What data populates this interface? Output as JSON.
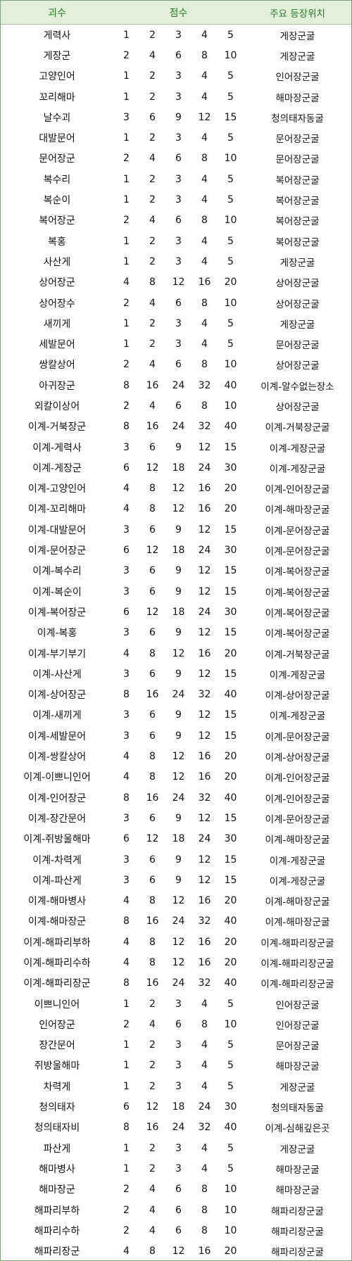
{
  "header": {
    "name": "괴수",
    "score": "점수",
    "location": "주요 등장위치"
  },
  "rows": [
    {
      "name": "게력사",
      "scores": [
        "1",
        "2",
        "3",
        "4",
        "5"
      ],
      "location": "게장군굴"
    },
    {
      "name": "게장군",
      "scores": [
        "2",
        "4",
        "6",
        "8",
        "10"
      ],
      "location": "게장군굴"
    },
    {
      "name": "고양인어",
      "scores": [
        "1",
        "2",
        "3",
        "4",
        "5"
      ],
      "location": "인어장군굴"
    },
    {
      "name": "꼬리해마",
      "scores": [
        "1",
        "2",
        "3",
        "4",
        "5"
      ],
      "location": "해마장군굴"
    },
    {
      "name": "날수괴",
      "scores": [
        "3",
        "6",
        "9",
        "12",
        "15"
      ],
      "location": "청의태자동굴"
    },
    {
      "name": "대발문어",
      "scores": [
        "1",
        "2",
        "3",
        "4",
        "5"
      ],
      "location": "문어장군굴"
    },
    {
      "name": "문어장군",
      "scores": [
        "2",
        "4",
        "6",
        "8",
        "10"
      ],
      "location": "문어장군굴"
    },
    {
      "name": "복수리",
      "scores": [
        "1",
        "2",
        "3",
        "4",
        "5"
      ],
      "location": "복어장군굴"
    },
    {
      "name": "복순이",
      "scores": [
        "1",
        "2",
        "3",
        "4",
        "5"
      ],
      "location": "복어장군굴"
    },
    {
      "name": "복어장군",
      "scores": [
        "2",
        "4",
        "6",
        "8",
        "10"
      ],
      "location": "복어장군굴"
    },
    {
      "name": "복홍",
      "scores": [
        "1",
        "2",
        "3",
        "4",
        "5"
      ],
      "location": "복어장군굴"
    },
    {
      "name": "사산게",
      "scores": [
        "1",
        "2",
        "3",
        "4",
        "5"
      ],
      "location": "게장군굴"
    },
    {
      "name": "상어장군",
      "scores": [
        "4",
        "8",
        "12",
        "16",
        "20"
      ],
      "location": "상어장군굴"
    },
    {
      "name": "상어장수",
      "scores": [
        "2",
        "4",
        "6",
        "8",
        "10"
      ],
      "location": "상어장군굴"
    },
    {
      "name": "새끼게",
      "scores": [
        "1",
        "2",
        "3",
        "4",
        "5"
      ],
      "location": "게장군굴"
    },
    {
      "name": "세발문어",
      "scores": [
        "1",
        "2",
        "3",
        "4",
        "5"
      ],
      "location": "문어장군굴"
    },
    {
      "name": "쌍칼상어",
      "scores": [
        "2",
        "4",
        "6",
        "8",
        "10"
      ],
      "location": "상어장군굴"
    },
    {
      "name": "아귀장군",
      "scores": [
        "8",
        "16",
        "24",
        "32",
        "40"
      ],
      "location": "이계-알수없는장소"
    },
    {
      "name": "외칼이상어",
      "scores": [
        "2",
        "4",
        "6",
        "8",
        "10"
      ],
      "location": "상어장군굴"
    },
    {
      "name": "이계-거북장군",
      "scores": [
        "8",
        "16",
        "24",
        "32",
        "40"
      ],
      "location": "이계-거북장군굴"
    },
    {
      "name": "이계-게력사",
      "scores": [
        "3",
        "6",
        "9",
        "12",
        "15"
      ],
      "location": "이계-게장군굴"
    },
    {
      "name": "이계-게장군",
      "scores": [
        "6",
        "12",
        "18",
        "24",
        "30"
      ],
      "location": "이계-게장군굴"
    },
    {
      "name": "이계-고양인어",
      "scores": [
        "4",
        "8",
        "12",
        "16",
        "20"
      ],
      "location": "이계-인어장군굴"
    },
    {
      "name": "이계-꼬리해마",
      "scores": [
        "4",
        "8",
        "12",
        "16",
        "20"
      ],
      "location": "이계-해마장군굴"
    },
    {
      "name": "이계-대발문어",
      "scores": [
        "3",
        "6",
        "9",
        "12",
        "15"
      ],
      "location": "이계-문어장군굴"
    },
    {
      "name": "이계-문어장군",
      "scores": [
        "6",
        "12",
        "18",
        "24",
        "30"
      ],
      "location": "이계-문어장군굴"
    },
    {
      "name": "이계-복수리",
      "scores": [
        "3",
        "6",
        "9",
        "12",
        "15"
      ],
      "location": "이계-복어장군굴"
    },
    {
      "name": "이계-복순이",
      "scores": [
        "3",
        "6",
        "9",
        "12",
        "15"
      ],
      "location": "이계-복어장군굴"
    },
    {
      "name": "이계-복어장군",
      "scores": [
        "6",
        "12",
        "18",
        "24",
        "30"
      ],
      "location": "이계-복어장군굴"
    },
    {
      "name": "이계-복홍",
      "scores": [
        "3",
        "6",
        "9",
        "12",
        "15"
      ],
      "location": "이계-복어장군굴"
    },
    {
      "name": "이계-부기부기",
      "scores": [
        "4",
        "8",
        "12",
        "16",
        "20"
      ],
      "location": "이계-거북장군굴"
    },
    {
      "name": "이계-사산게",
      "scores": [
        "3",
        "6",
        "9",
        "12",
        "15"
      ],
      "location": "이계-게장군굴"
    },
    {
      "name": "이계-상어장군",
      "scores": [
        "8",
        "16",
        "24",
        "32",
        "40"
      ],
      "location": "이계-상어장군굴"
    },
    {
      "name": "이계-새끼게",
      "scores": [
        "3",
        "6",
        "9",
        "12",
        "15"
      ],
      "location": "이계-게장군굴"
    },
    {
      "name": "이계-세발문어",
      "scores": [
        "3",
        "6",
        "9",
        "12",
        "15"
      ],
      "location": "이계-문어장군굴"
    },
    {
      "name": "이계-쌍칼상어",
      "scores": [
        "4",
        "8",
        "12",
        "16",
        "20"
      ],
      "location": "이계-상어장군굴"
    },
    {
      "name": "이계-이쁘니인어",
      "scores": [
        "4",
        "8",
        "12",
        "16",
        "20"
      ],
      "location": "이계-인어장군굴"
    },
    {
      "name": "이계-인어장군",
      "scores": [
        "8",
        "16",
        "24",
        "32",
        "40"
      ],
      "location": "이계-인어장군굴"
    },
    {
      "name": "이계-장간문어",
      "scores": [
        "3",
        "6",
        "9",
        "12",
        "15"
      ],
      "location": "이계-문어장군굴"
    },
    {
      "name": "이계-쥐방울해마",
      "scores": [
        "6",
        "12",
        "18",
        "24",
        "30"
      ],
      "location": "이계-해마장군굴"
    },
    {
      "name": "이계-차력게",
      "scores": [
        "3",
        "6",
        "9",
        "12",
        "15"
      ],
      "location": "이계-게장군굴"
    },
    {
      "name": "이계-파산게",
      "scores": [
        "3",
        "6",
        "9",
        "12",
        "15"
      ],
      "location": "이계-게장군굴"
    },
    {
      "name": "이계-해마병사",
      "scores": [
        "4",
        "8",
        "12",
        "16",
        "20"
      ],
      "location": "이계-해마장군굴"
    },
    {
      "name": "이계-해마장군",
      "scores": [
        "8",
        "16",
        "24",
        "32",
        "40"
      ],
      "location": "이계-해마장군굴"
    },
    {
      "name": "이계-해파리부하",
      "scores": [
        "4",
        "8",
        "12",
        "16",
        "20"
      ],
      "location": "이계-해파리장군굴"
    },
    {
      "name": "이계-해파리수하",
      "scores": [
        "4",
        "8",
        "12",
        "16",
        "20"
      ],
      "location": "이계-해파리장군굴"
    },
    {
      "name": "이계-해파리장군",
      "scores": [
        "8",
        "16",
        "24",
        "32",
        "40"
      ],
      "location": "이계-해파리장군굴"
    },
    {
      "name": "이쁘니인어",
      "scores": [
        "1",
        "2",
        "3",
        "4",
        "5"
      ],
      "location": "인어장군굴"
    },
    {
      "name": "인어장군",
      "scores": [
        "2",
        "4",
        "6",
        "8",
        "10"
      ],
      "location": "인어장군굴"
    },
    {
      "name": "장간문어",
      "scores": [
        "1",
        "2",
        "3",
        "4",
        "5"
      ],
      "location": "문어장군굴"
    },
    {
      "name": "쥐방울해마",
      "scores": [
        "1",
        "2",
        "3",
        "4",
        "5"
      ],
      "location": "해마장군굴"
    },
    {
      "name": "차력게",
      "scores": [
        "1",
        "2",
        "3",
        "4",
        "5"
      ],
      "location": "게장군굴"
    },
    {
      "name": "청의태자",
      "scores": [
        "6",
        "12",
        "18",
        "24",
        "30"
      ],
      "location": "청의태자동굴"
    },
    {
      "name": "청의태자비",
      "scores": [
        "8",
        "16",
        "24",
        "32",
        "40"
      ],
      "location": "이계-심해깊은곳"
    },
    {
      "name": "파산게",
      "scores": [
        "1",
        "2",
        "3",
        "4",
        "5"
      ],
      "location": "게장군굴"
    },
    {
      "name": "해마병사",
      "scores": [
        "1",
        "2",
        "3",
        "4",
        "5"
      ],
      "location": "해마장군굴"
    },
    {
      "name": "해마장군",
      "scores": [
        "2",
        "4",
        "6",
        "8",
        "10"
      ],
      "location": "해마장군굴"
    },
    {
      "name": "해파리부하",
      "scores": [
        "2",
        "4",
        "6",
        "8",
        "10"
      ],
      "location": "해파리장군굴"
    },
    {
      "name": "해파리수하",
      "scores": [
        "2",
        "4",
        "6",
        "8",
        "10"
      ],
      "location": "해파리장군굴"
    },
    {
      "name": "해파리장군",
      "scores": [
        "4",
        "8",
        "12",
        "16",
        "20"
      ],
      "location": "해파리장군굴"
    }
  ]
}
